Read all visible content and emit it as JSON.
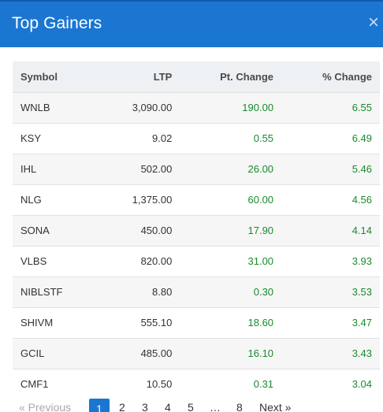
{
  "modal": {
    "title": "Top Gainers",
    "close_glyph": "×",
    "close_icon": "close-icon"
  },
  "table": {
    "headers": {
      "symbol": "Symbol",
      "ltp": "LTP",
      "pt_change": "Pt. Change",
      "pct_change": "% Change"
    },
    "rows": [
      {
        "symbol": "WNLB",
        "ltp": "3,090.00",
        "pt_change": "190.00",
        "pct_change": "6.55"
      },
      {
        "symbol": "KSY",
        "ltp": "9.02",
        "pt_change": "0.55",
        "pct_change": "6.49"
      },
      {
        "symbol": "IHL",
        "ltp": "502.00",
        "pt_change": "26.00",
        "pct_change": "5.46"
      },
      {
        "symbol": "NLG",
        "ltp": "1,375.00",
        "pt_change": "60.00",
        "pct_change": "4.56"
      },
      {
        "symbol": "SONA",
        "ltp": "450.00",
        "pt_change": "17.90",
        "pct_change": "4.14"
      },
      {
        "symbol": "VLBS",
        "ltp": "820.00",
        "pt_change": "31.00",
        "pct_change": "3.93"
      },
      {
        "symbol": "NIBLSTF",
        "ltp": "8.80",
        "pt_change": "0.30",
        "pct_change": "3.53"
      },
      {
        "symbol": "SHIVM",
        "ltp": "555.10",
        "pt_change": "18.60",
        "pct_change": "3.47"
      },
      {
        "symbol": "GCIL",
        "ltp": "485.00",
        "pt_change": "16.10",
        "pct_change": "3.43"
      },
      {
        "symbol": "CMF1",
        "ltp": "10.50",
        "pt_change": "0.31",
        "pct_change": "3.04"
      }
    ]
  },
  "pagination": {
    "previous": "« Previous",
    "pages": [
      "1",
      "2",
      "3",
      "4",
      "5",
      "…",
      "8"
    ],
    "active_page": "1",
    "next": "Next »"
  },
  "colors": {
    "header_bg": "#1b76d2",
    "positive": "#1a8a2e",
    "table_head_bg": "#eef1f4",
    "row_stripe": "#f6f6f6"
  }
}
